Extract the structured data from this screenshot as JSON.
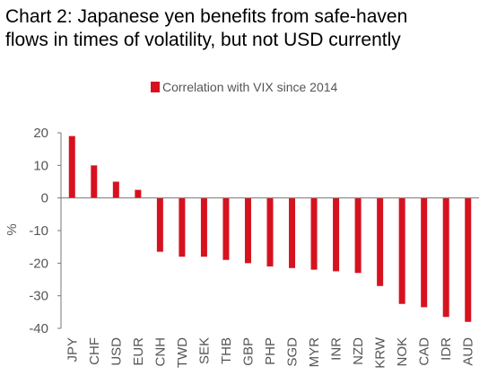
{
  "title_line1": "Chart 2: Japanese yen benefits from safe-haven",
  "title_line2": "flows in times of volatility, but not USD currently",
  "chart_data": {
    "type": "bar",
    "categories": [
      "JPY",
      "CHF",
      "USD",
      "EUR",
      "CNH",
      "TWD",
      "SEK",
      "THB",
      "GBP",
      "PHP",
      "SGD",
      "MYR",
      "INR",
      "NZD",
      "KRW",
      "NOK",
      "CAD",
      "IDR",
      "AUD"
    ],
    "series": [
      {
        "name": "Correlation with VIX since 2014",
        "values": [
          19,
          10,
          5,
          2.5,
          -16.5,
          -18,
          -18,
          -19,
          -20,
          -21,
          -21.5,
          -22,
          -22.5,
          -23,
          -27,
          -32.5,
          -33.5,
          -36.5,
          -38
        ],
        "color": "#d7121f"
      }
    ],
    "ylabel": "%",
    "ylim": [
      -40,
      20
    ],
    "yticks": [
      20,
      10,
      0,
      -10,
      -20,
      -30,
      -40
    ],
    "grid": false,
    "legend": "top"
  }
}
